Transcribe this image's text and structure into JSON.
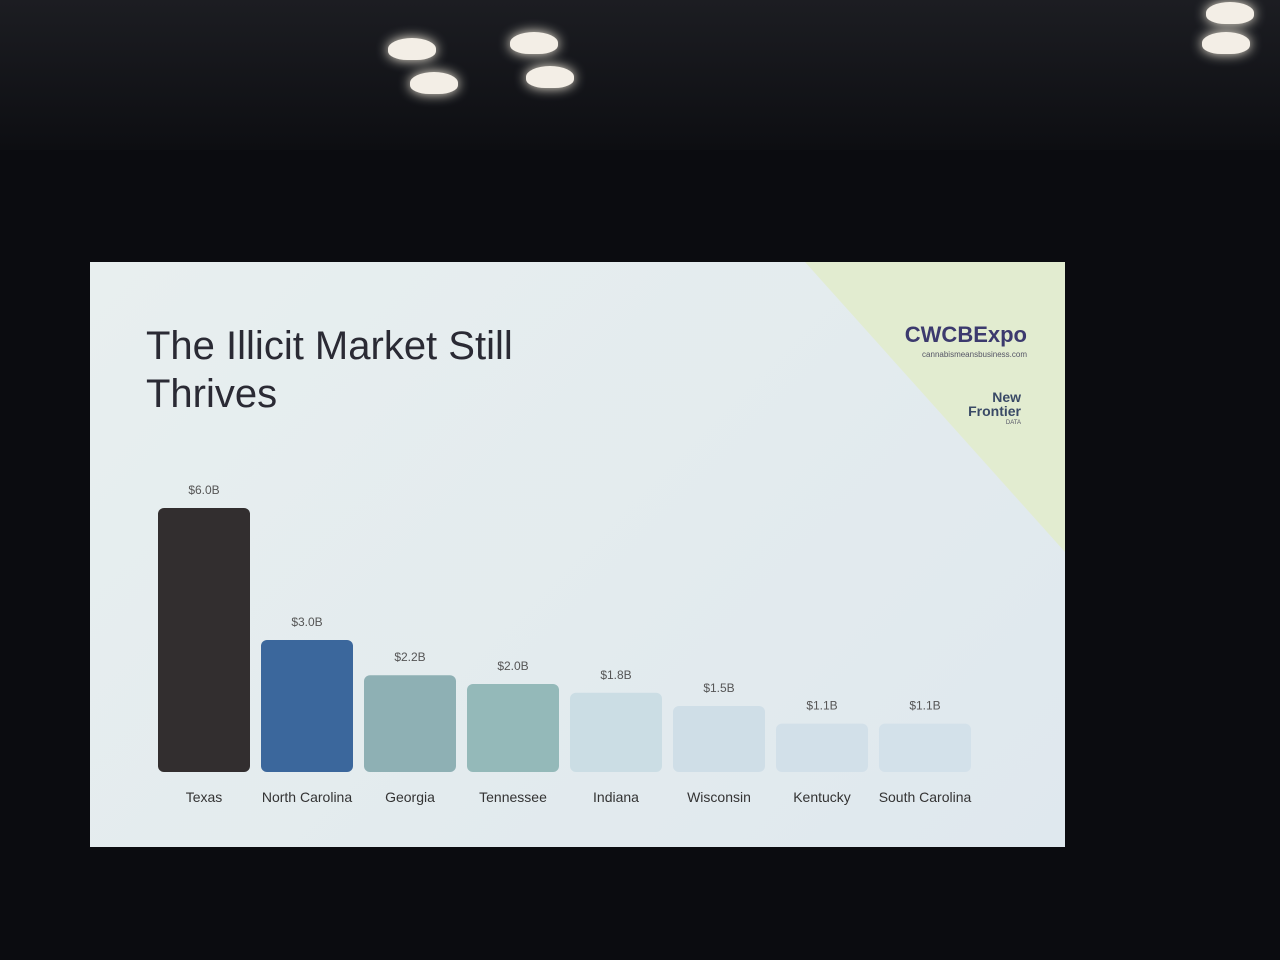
{
  "chart_data": {
    "type": "bar",
    "title": "The Illicit Market Still Thrives",
    "categories": [
      "Texas",
      "North Carolina",
      "Georgia",
      "Tennessee",
      "Indiana",
      "Wisconsin",
      "Kentucky",
      "South Carolina"
    ],
    "values": [
      6.0,
      3.0,
      2.2,
      2.0,
      1.8,
      1.5,
      1.1,
      1.1
    ],
    "value_labels": [
      "$6.0B",
      "$3.0B",
      "$2.2B",
      "$2.0B",
      "$1.8B",
      "$1.5B",
      "$1.1B",
      "$1.1B"
    ],
    "colors": [
      "#322e2f",
      "#3b679c",
      "#8eb0b4",
      "#94b9b9",
      "#cbdde4",
      "#cfdee7",
      "#d2e0e9",
      "#d3e1ea"
    ]
  },
  "branding": {
    "expo": "CWCBExpo",
    "expo_url": "cannabismeansbusiness.com",
    "partner": "New Frontier",
    "partner_sub": "DATA"
  }
}
